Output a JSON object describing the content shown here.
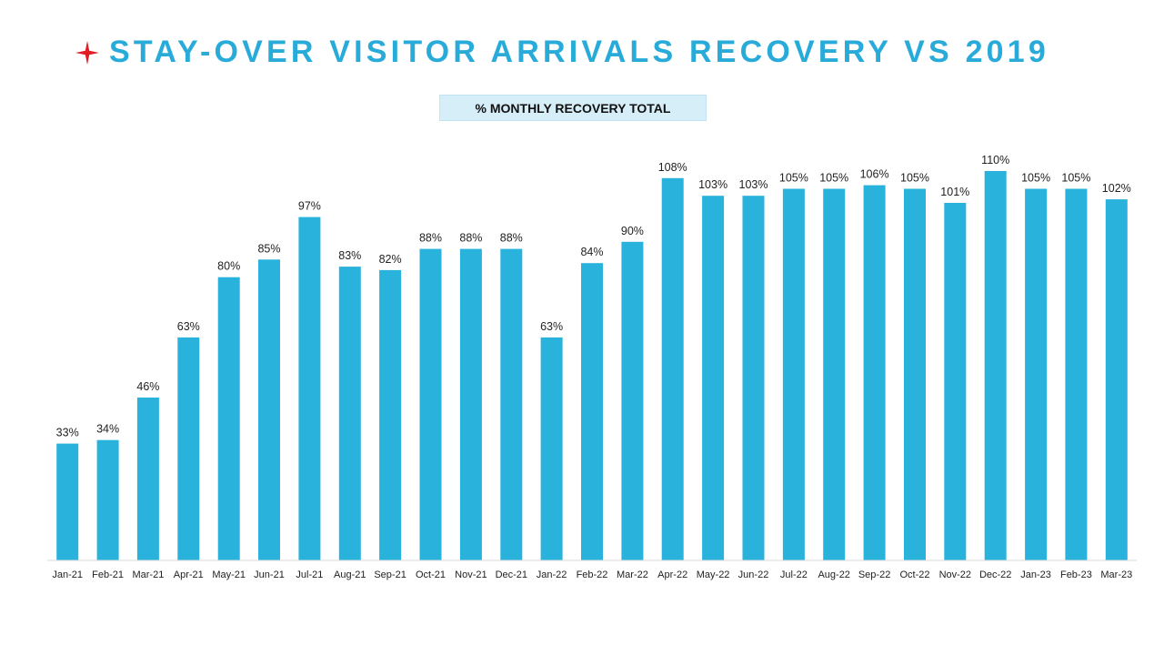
{
  "header": {
    "title": "STAY-OVER VISITOR ARRIVALS RECOVERY VS 2019",
    "subtitle": "% MONTHLY RECOVERY TOTAL",
    "title_color": "#29abd9",
    "star_color": "#e31b23"
  },
  "chart_data": {
    "type": "bar",
    "title": "STAY-OVER VISITOR ARRIVALS RECOVERY VS 2019",
    "subtitle": "% MONTHLY RECOVERY TOTAL",
    "xlabel": "",
    "ylabel": "",
    "unit": "%",
    "ylim": [
      0,
      110
    ],
    "grid": false,
    "legend": "none",
    "bar_color": "#29b2dc",
    "categories": [
      "Jan-21",
      "Feb-21",
      "Mar-21",
      "Apr-21",
      "May-21",
      "Jun-21",
      "Jul-21",
      "Aug-21",
      "Sep-21",
      "Oct-21",
      "Nov-21",
      "Dec-21",
      "Jan-22",
      "Feb-22",
      "Mar-22",
      "Apr-22",
      "May-22",
      "Jun-22",
      "Jul-22",
      "Aug-22",
      "Sep-22",
      "Oct-22",
      "Nov-22",
      "Dec-22",
      "Jan-23",
      "Feb-23",
      "Mar-23"
    ],
    "values": [
      33,
      34,
      46,
      63,
      80,
      85,
      97,
      83,
      82,
      88,
      88,
      88,
      63,
      84,
      90,
      108,
      103,
      103,
      105,
      105,
      106,
      105,
      101,
      110,
      105,
      105,
      102
    ],
    "data_labels": [
      "33%",
      "34%",
      "46%",
      "63%",
      "80%",
      "85%",
      "97%",
      "83%",
      "82%",
      "88%",
      "88%",
      "88%",
      "63%",
      "84%",
      "90%",
      "108%",
      "103%",
      "103%",
      "105%",
      "105%",
      "106%",
      "105%",
      "101%",
      "110%",
      "105%",
      "105%",
      "102%"
    ]
  }
}
